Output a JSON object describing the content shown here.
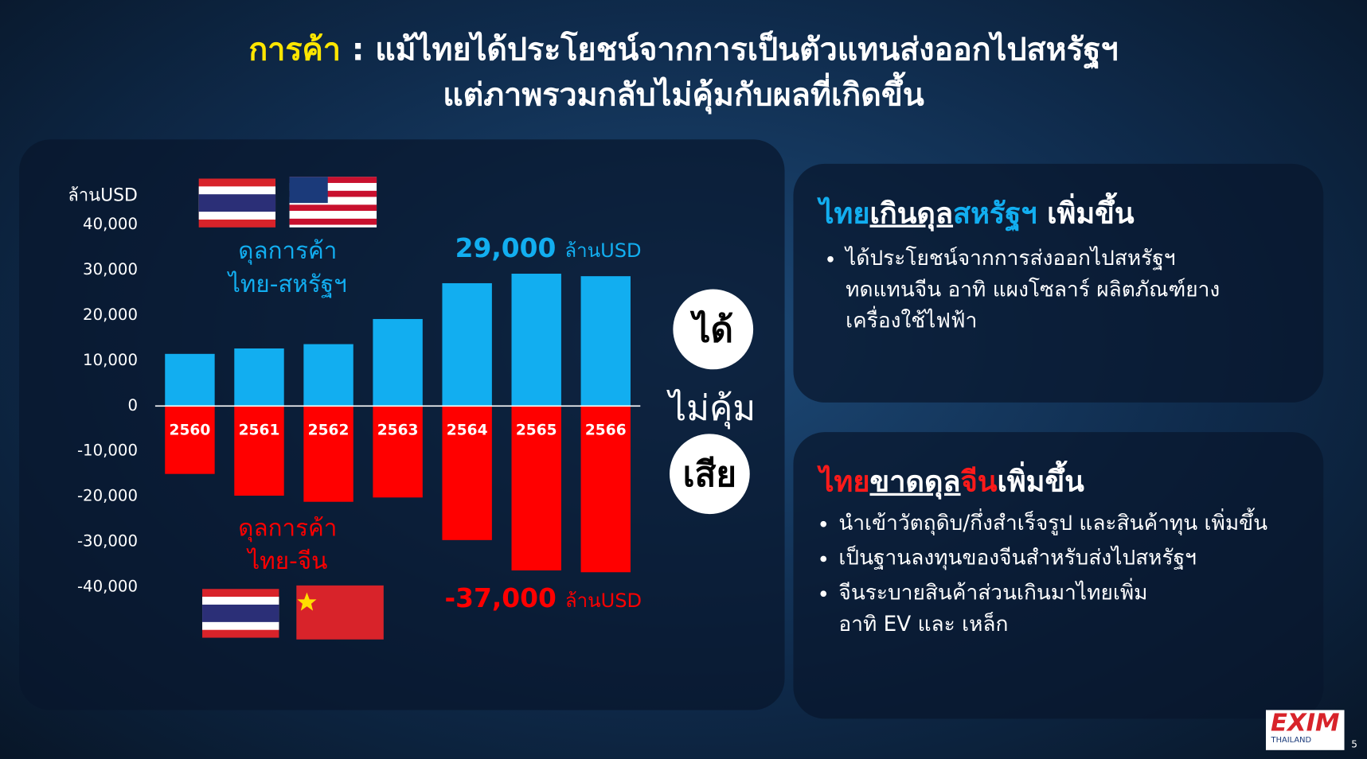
{
  "title_parts": [
    "การค้า",
    " : แม้ไทยได้ประโยชน์จากการเป็นตัวแทนส่งออกไปสหรัฐฯ",
    "แต่ภาพรวมกลับไม่คุ้มกับผลที่เกิดขึ้น"
  ],
  "chart_data": {
    "type": "bar",
    "ylabel": "ล้านUSD",
    "categories": [
      "2560",
      "2561",
      "2562",
      "2563",
      "2564",
      "2565",
      "2566"
    ],
    "series": [
      {
        "name": "ดุลการค้า\nไทย-สหรัฐฯ",
        "color": "#12aef0",
        "values": [
          11500,
          12700,
          13650,
          19200,
          27100,
          29200,
          28650
        ]
      },
      {
        "name": "ดุลการค้า\nไทย-จีน",
        "color": "#ff0000",
        "values": [
          -15000,
          -19800,
          -21150,
          -20200,
          -29600,
          -36300,
          -36700
        ]
      }
    ],
    "ylim": [
      -40000,
      40000
    ],
    "yticks": [
      {
        "value": 40000,
        "label": "40,000"
      },
      {
        "value": 30000,
        "label": "30,000"
      },
      {
        "value": 20000,
        "label": "20,000"
      },
      {
        "value": 10000,
        "label": "10,000"
      },
      0,
      {
        "value": -10000,
        "label": "-10,000"
      },
      {
        "value": -20000,
        "label": "-20,000"
      },
      {
        "value": -30000,
        "label": "-30,000"
      },
      {
        "value": -40000,
        "label": "-40,000"
      }
    ],
    "annotations": [
      {
        "value": 29000,
        "label": "29,000",
        "unit": "ล้านUSD"
      },
      {
        "value": -37000,
        "label": "-37,000",
        "unit": "ล้านUSD"
      }
    ]
  },
  "verdict": [
    "ได้",
    "ไม่คุ้ม",
    "เสีย"
  ],
  "panels": [
    {
      "heading": [
        "ไทย",
        "เกินดุล",
        "สหรัฐฯ",
        " เพิ่มขึ้น"
      ],
      "bullets": [
        "ได้ประโยชน์จากการส่งออกไปสหรัฐฯ\nทดแทนจีน อาทิ แผงโซลาร์ ผลิตภัณฑ์ยาง\nเครื่องใช้ไฟฟ้า"
      ]
    },
    {
      "heading": [
        "ไทย",
        "ขาดดุล",
        "จีน",
        "เพิ่มขึ้น"
      ],
      "bullets": [
        "นำเข้าวัตถุดิบ/กึ่งสำเร็จรูป และสินค้าทุน เพิ่มขึ้น",
        "เป็นฐานลงทุนของจีนสำหรับส่งไปสหรัฐฯ",
        "จีนระบายสินค้าส่วนเกินมาไทยเพิ่ม\nอาทิ EV และ เหล็ก"
      ]
    }
  ],
  "logo": {
    "name": "EXIM",
    "sub": "THAILAND"
  },
  "page_number": "5"
}
